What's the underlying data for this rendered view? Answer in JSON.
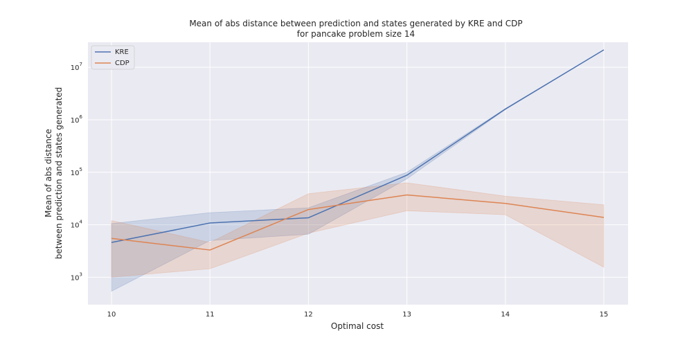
{
  "chart_data": {
    "type": "line",
    "title": "Mean of abs distance between prediction and states generated by KRE and CDP",
    "subtitle": "for pancake problem size 14",
    "xlabel": "Optimal cost",
    "ylabel_line1": "Mean of abs distance",
    "ylabel_line2": "between prediction and states generated",
    "x": [
      10,
      11,
      12,
      13,
      14,
      15
    ],
    "y_scale": "log",
    "ylim": [
      300,
      30000000
    ],
    "y_tick_labels": [
      {
        "base": "10",
        "exp": "3",
        "value": 1000
      },
      {
        "base": "10",
        "exp": "4",
        "value": 10000
      },
      {
        "base": "10",
        "exp": "5",
        "value": 100000
      },
      {
        "base": "10",
        "exp": "6",
        "value": 1000000
      },
      {
        "base": "10",
        "exp": "7",
        "value": 10000000
      }
    ],
    "grid": true,
    "legend_position": "top-left",
    "series": [
      {
        "name": "KRE",
        "color": "#4c72b0",
        "values": [
          4600,
          10800,
          13600,
          88000,
          1600000,
          21500000
        ],
        "ci_low": [
          540,
          5000,
          6600,
          75000,
          1560000,
          21500000
        ],
        "ci_high": [
          10500,
          17000,
          21000,
          100000,
          1640000,
          21500000
        ]
      },
      {
        "name": "CDP",
        "color": "#dd8452",
        "values": [
          5500,
          3300,
          19500,
          37000,
          25500,
          13800
        ],
        "ci_low": [
          1000,
          1450,
          6900,
          18500,
          15500,
          1550
        ],
        "ci_high": [
          12000,
          4600,
          39000,
          63000,
          35000,
          24000
        ]
      }
    ]
  }
}
